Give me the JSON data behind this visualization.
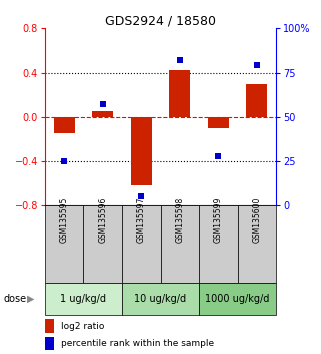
{
  "title": "GDS2924 / 18580",
  "samples": [
    "GSM135595",
    "GSM135596",
    "GSM135597",
    "GSM135598",
    "GSM135599",
    "GSM135600"
  ],
  "log2_ratio": [
    -0.15,
    0.05,
    -0.62,
    0.42,
    -0.1,
    0.3
  ],
  "percentile": [
    25,
    57,
    5,
    82,
    28,
    79
  ],
  "ylim_left": [
    -0.8,
    0.8
  ],
  "ylim_right": [
    0,
    100
  ],
  "yticks_left": [
    -0.8,
    -0.4,
    0.0,
    0.4,
    0.8
  ],
  "yticks_right": [
    0,
    25,
    50,
    75,
    100
  ],
  "yticklabels_right": [
    "0",
    "25",
    "50",
    "75",
    "100%"
  ],
  "dose_groups": [
    {
      "label": "1 ug/kg/d",
      "samples": [
        0,
        1
      ],
      "color": "#cceecc"
    },
    {
      "label": "10 ug/kg/d",
      "samples": [
        2,
        3
      ],
      "color": "#aaddaa"
    },
    {
      "label": "1000 ug/kg/d",
      "samples": [
        4,
        5
      ],
      "color": "#88cc88"
    }
  ],
  "bar_color": "#cc2200",
  "dot_color": "#0000cc",
  "bar_width": 0.55,
  "legend_bar_label": "log2 ratio",
  "legend_dot_label": "percentile rank within the sample",
  "dose_label": "dose",
  "sample_bg_color": "#cccccc"
}
